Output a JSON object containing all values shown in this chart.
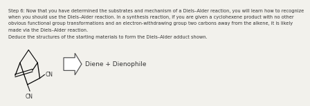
{
  "text_lines": [
    "Step 6: Now that you have determined the substrates and mechanism of a Diels–Alder reaction, you will learn how to recognize",
    "when you should use the Diels–Alder reaction. In a synthesis reaction, if you are given a cyclohexene product with no other",
    "obvious functional group transformations and an electron-withdrawing group two carbons away from the alkene, it is likely",
    "made via the Diels–Alder reaction.",
    "Deduce the structures of the starting materials to form the Diels–Alder adduct shown."
  ],
  "arrow_label": "Diene + Dienophile",
  "text_color": "#333333",
  "bg_color": "#f2f1ec",
  "font_size_body": 4.8,
  "font_size_label": 6.5,
  "cn_fontsize": 5.5
}
